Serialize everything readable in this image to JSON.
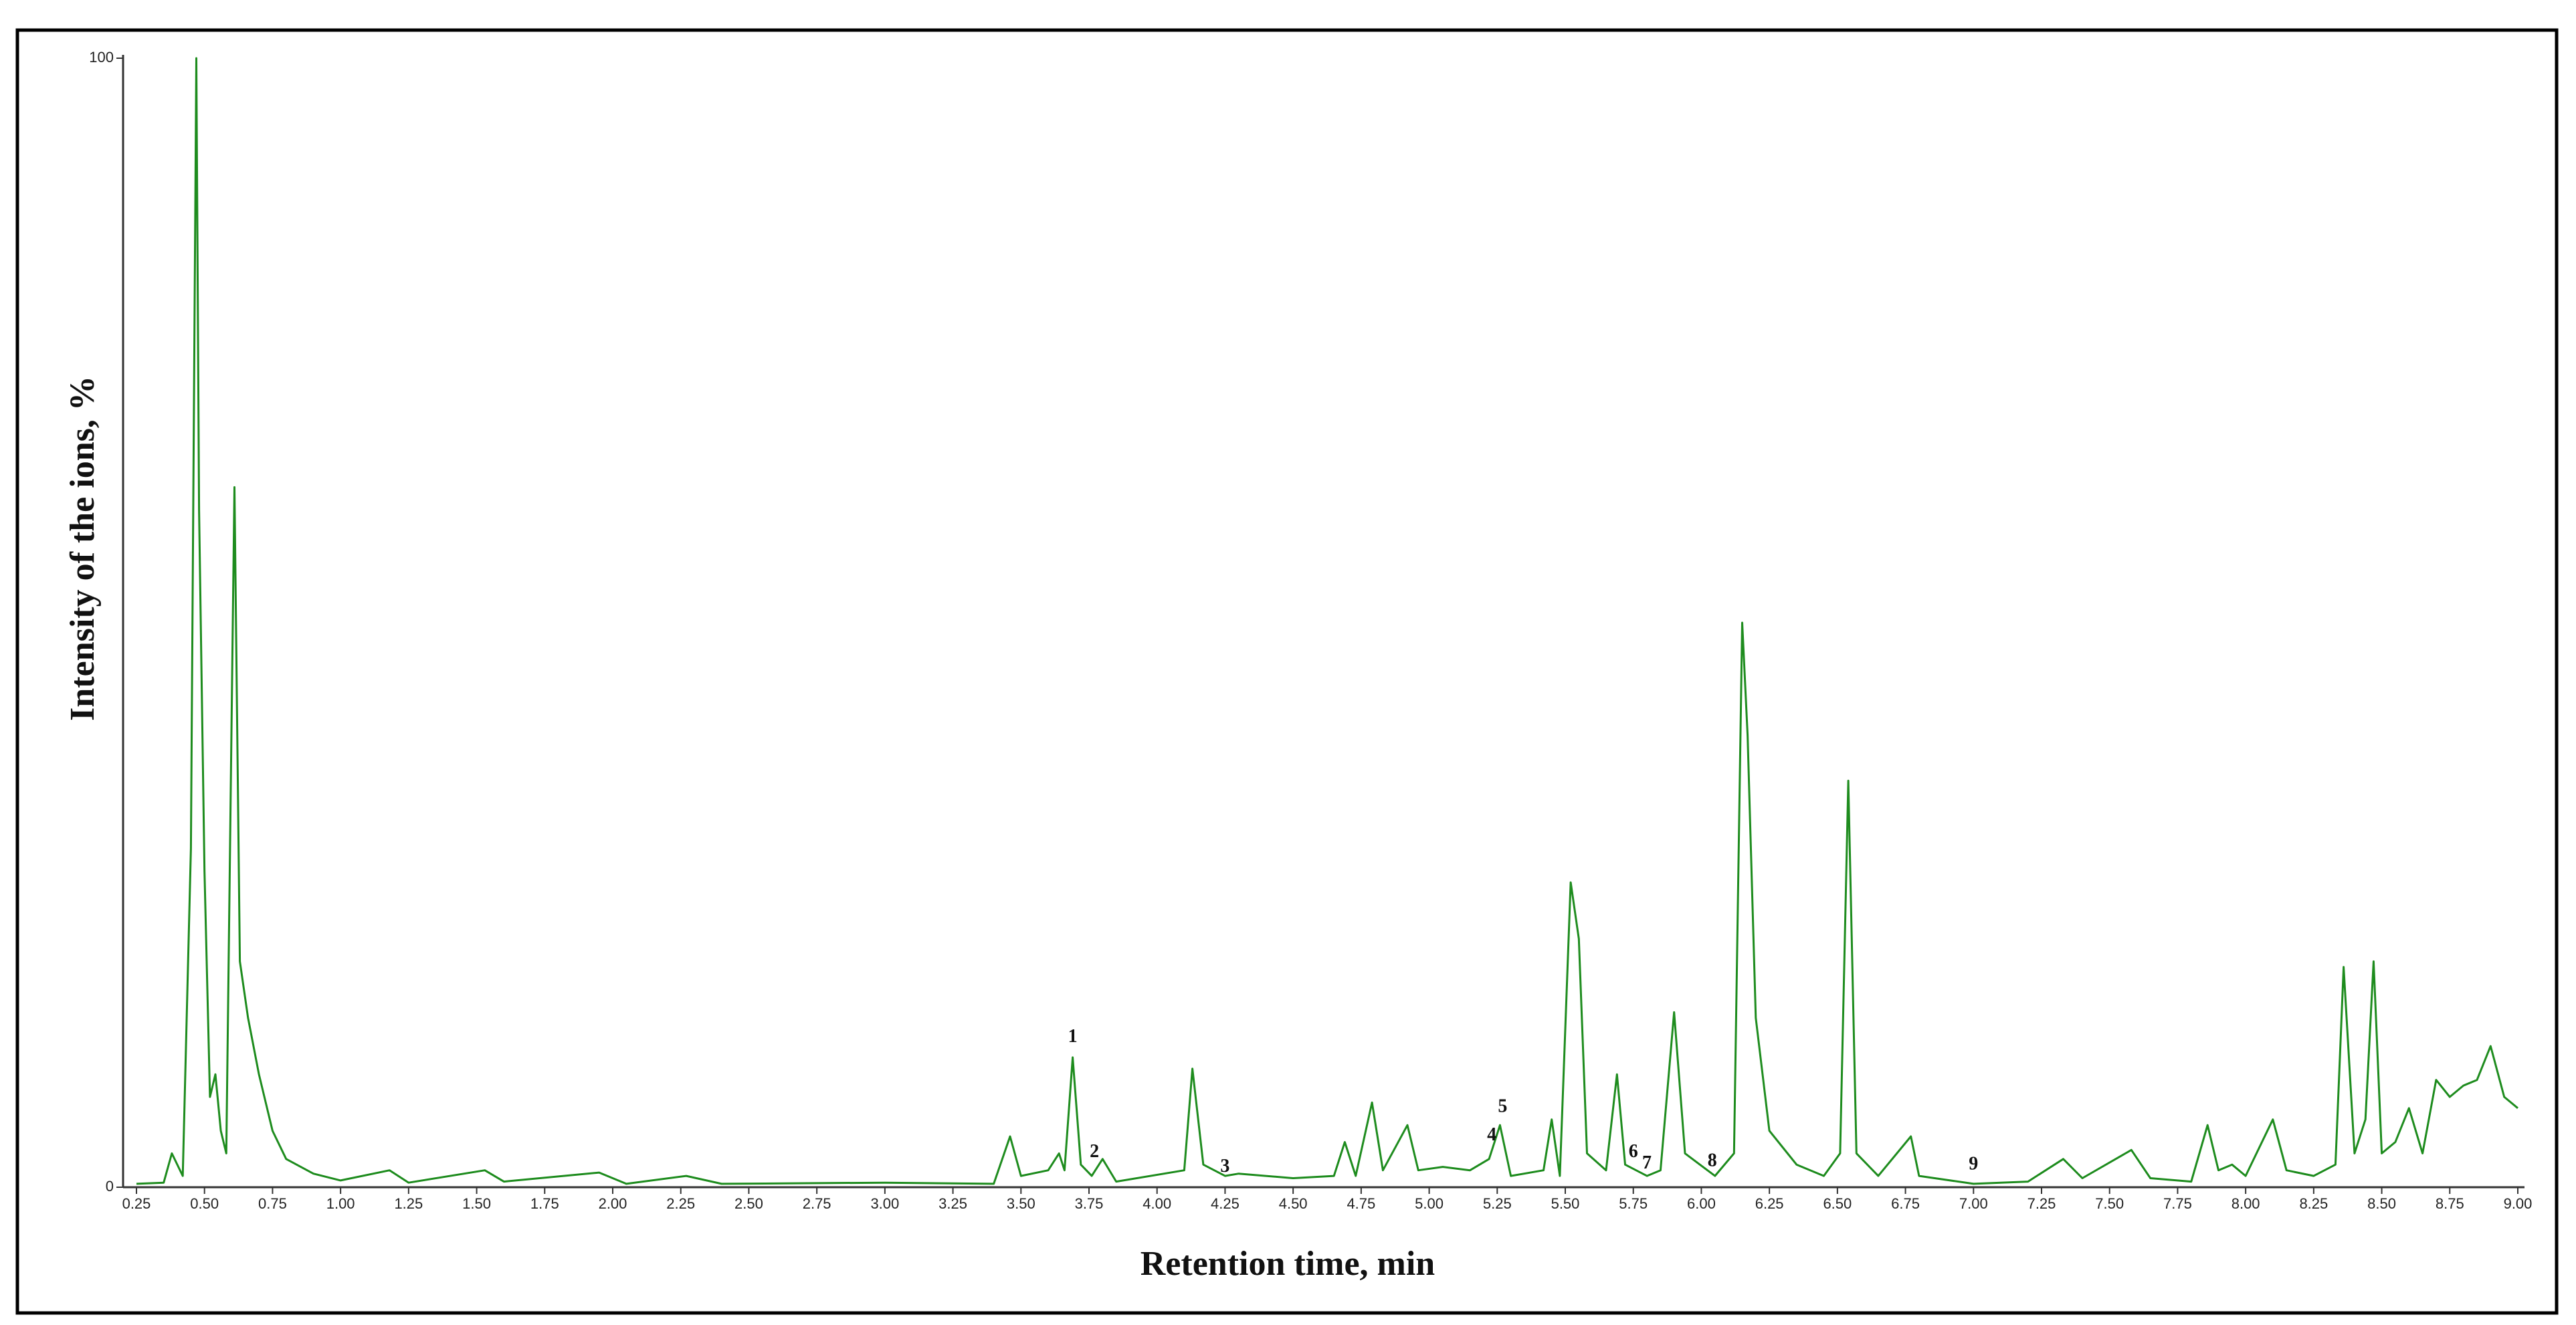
{
  "chart_data": {
    "type": "line",
    "x_label": "Retention time, min",
    "y_label": "Intensity of the ions, %",
    "xlim": [
      0.25,
      9.0
    ],
    "ylim": [
      0,
      100
    ],
    "yticks": [
      0,
      100
    ],
    "xticks": [
      {
        "value": 0.25,
        "label": "0.25"
      },
      {
        "value": 0.5,
        "label": "0.50"
      },
      {
        "value": 0.75,
        "label": "0.75"
      },
      {
        "value": 1.0,
        "label": "1.00"
      },
      {
        "value": 1.25,
        "label": "1.25"
      },
      {
        "value": 1.5,
        "label": "1.50"
      },
      {
        "value": 1.75,
        "label": "1.75"
      },
      {
        "value": 2.0,
        "label": "2.00"
      },
      {
        "value": 2.25,
        "label": "2.25"
      },
      {
        "value": 2.5,
        "label": "2.50"
      },
      {
        "value": 2.75,
        "label": "2.75"
      },
      {
        "value": 3.0,
        "label": "3.00"
      },
      {
        "value": 3.25,
        "label": "3.25"
      },
      {
        "value": 3.5,
        "label": "3.50"
      },
      {
        "value": 3.75,
        "label": "3.75"
      },
      {
        "value": 4.0,
        "label": "4.00"
      },
      {
        "value": 4.25,
        "label": "4.25"
      },
      {
        "value": 4.5,
        "label": "4.50"
      },
      {
        "value": 4.75,
        "label": "4.75"
      },
      {
        "value": 5.0,
        "label": "5.00"
      },
      {
        "value": 5.25,
        "label": "5.25"
      },
      {
        "value": 5.5,
        "label": "5.50"
      },
      {
        "value": 5.75,
        "label": "5.75"
      },
      {
        "value": 6.0,
        "label": "6.00"
      },
      {
        "value": 6.25,
        "label": "6.25"
      },
      {
        "value": 6.5,
        "label": "6.50"
      },
      {
        "value": 6.75,
        "label": "6.75"
      },
      {
        "value": 7.0,
        "label": "7.00"
      },
      {
        "value": 7.25,
        "label": "7.25"
      },
      {
        "value": 7.5,
        "label": "7.50"
      },
      {
        "value": 7.75,
        "label": "7.75"
      },
      {
        "value": 8.0,
        "label": "8.00"
      },
      {
        "value": 8.25,
        "label": "8.25"
      },
      {
        "value": 8.5,
        "label": "8.50"
      },
      {
        "value": 8.75,
        "label": "8.75"
      },
      {
        "value": 9.0,
        "label": "9.00"
      }
    ],
    "x": [
      0.25,
      0.35,
      0.38,
      0.42,
      0.45,
      0.47,
      0.48,
      0.5,
      0.52,
      0.54,
      0.56,
      0.58,
      0.61,
      0.63,
      0.66,
      0.7,
      0.75,
      0.8,
      0.9,
      1.0,
      1.18,
      1.25,
      1.53,
      1.6,
      1.95,
      2.05,
      2.27,
      2.4,
      3.0,
      3.4,
      3.46,
      3.5,
      3.6,
      3.64,
      3.66,
      3.69,
      3.72,
      3.76,
      3.8,
      3.85,
      4.1,
      4.13,
      4.17,
      4.25,
      4.3,
      4.5,
      4.65,
      4.69,
      4.73,
      4.79,
      4.83,
      4.92,
      4.96,
      5.05,
      5.15,
      5.22,
      5.26,
      5.3,
      5.42,
      5.45,
      5.48,
      5.52,
      5.55,
      5.58,
      5.65,
      5.69,
      5.72,
      5.8,
      5.85,
      5.9,
      5.94,
      6.05,
      6.12,
      6.15,
      6.17,
      6.2,
      6.25,
      6.35,
      6.45,
      6.51,
      6.54,
      6.57,
      6.65,
      6.77,
      6.8,
      7.0,
      7.2,
      7.33,
      7.4,
      7.58,
      7.65,
      7.8,
      7.86,
      7.9,
      7.95,
      8.0,
      8.1,
      8.15,
      8.25,
      8.33,
      8.36,
      8.4,
      8.44,
      8.47,
      8.5,
      8.55,
      8.6,
      8.65,
      8.7,
      8.75,
      8.8,
      8.85,
      8.9,
      8.95,
      9.0
    ],
    "series": [
      {
        "color": "#1e8c1e",
        "values": [
          0.3,
          0.4,
          3,
          1,
          30,
          100,
          60,
          28,
          8,
          10,
          5,
          3,
          62,
          20,
          15,
          10,
          5,
          2.5,
          1.2,
          0.6,
          1.5,
          0.4,
          1.5,
          0.5,
          1.3,
          0.3,
          1,
          0.3,
          0.4,
          0.3,
          4.5,
          1,
          1.5,
          3,
          1.5,
          11.5,
          2,
          1,
          2.5,
          0.5,
          1.5,
          10.5,
          2,
          1,
          1.2,
          0.8,
          1,
          4,
          1,
          7.5,
          1.5,
          5.5,
          1.5,
          1.8,
          1.5,
          2.5,
          5.5,
          1,
          1.5,
          6,
          1,
          27,
          22,
          3,
          1.5,
          10,
          2,
          1,
          1.5,
          15.5,
          3,
          1,
          3,
          50,
          40,
          15,
          5,
          2,
          1,
          3,
          36,
          3,
          1,
          4.5,
          1,
          0.3,
          0.5,
          2.5,
          0.8,
          3.3,
          0.8,
          0.5,
          5.5,
          1.5,
          2,
          1,
          6,
          1.5,
          1,
          2,
          19.5,
          3,
          6,
          20,
          3,
          4,
          7,
          3,
          9.5,
          8,
          9,
          9.5,
          12.5,
          8,
          7
        ]
      }
    ],
    "annotations": [
      {
        "label": "1",
        "x": 3.69,
        "y": 12.5
      },
      {
        "label": "2",
        "x": 3.77,
        "y": 2.3
      },
      {
        "label": "3",
        "x": 4.25,
        "y": 1
      },
      {
        "label": "4",
        "x": 5.23,
        "y": 3.8
      },
      {
        "label": "5",
        "x": 5.27,
        "y": 6.3
      },
      {
        "label": "6",
        "x": 5.75,
        "y": 2.3
      },
      {
        "label": "7",
        "x": 5.8,
        "y": 1.3
      },
      {
        "label": "8",
        "x": 6.04,
        "y": 1.5
      },
      {
        "label": "9",
        "x": 7.0,
        "y": 1.2
      }
    ]
  }
}
